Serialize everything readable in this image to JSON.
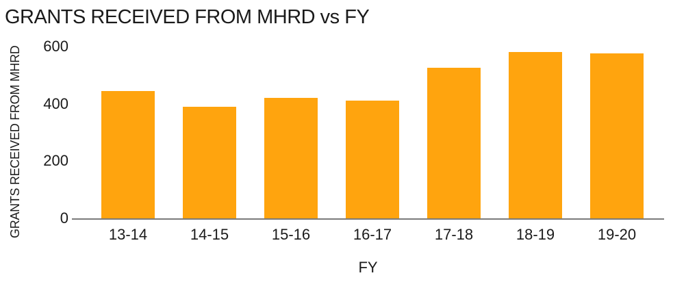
{
  "chart_data": {
    "type": "bar",
    "title": "GRANTS RECEIVED FROM MHRD vs FY",
    "xlabel": "FY",
    "ylabel": "GRANTS RECEIVED FROM MHRD",
    "categories": [
      "13-14",
      "14-15",
      "15-16",
      "16-17",
      "17-18",
      "18-19",
      "19-20"
    ],
    "values": [
      445,
      390,
      420,
      410,
      525,
      580,
      575
    ],
    "ylim": [
      0,
      600
    ],
    "yticks": [
      0,
      200,
      400,
      600
    ],
    "grid": false,
    "legend": "none",
    "colors": {
      "bar": "#FFA40E",
      "axis_line": "#7a7a7a",
      "text": "#1a1a1a",
      "background": "#ffffff"
    }
  }
}
